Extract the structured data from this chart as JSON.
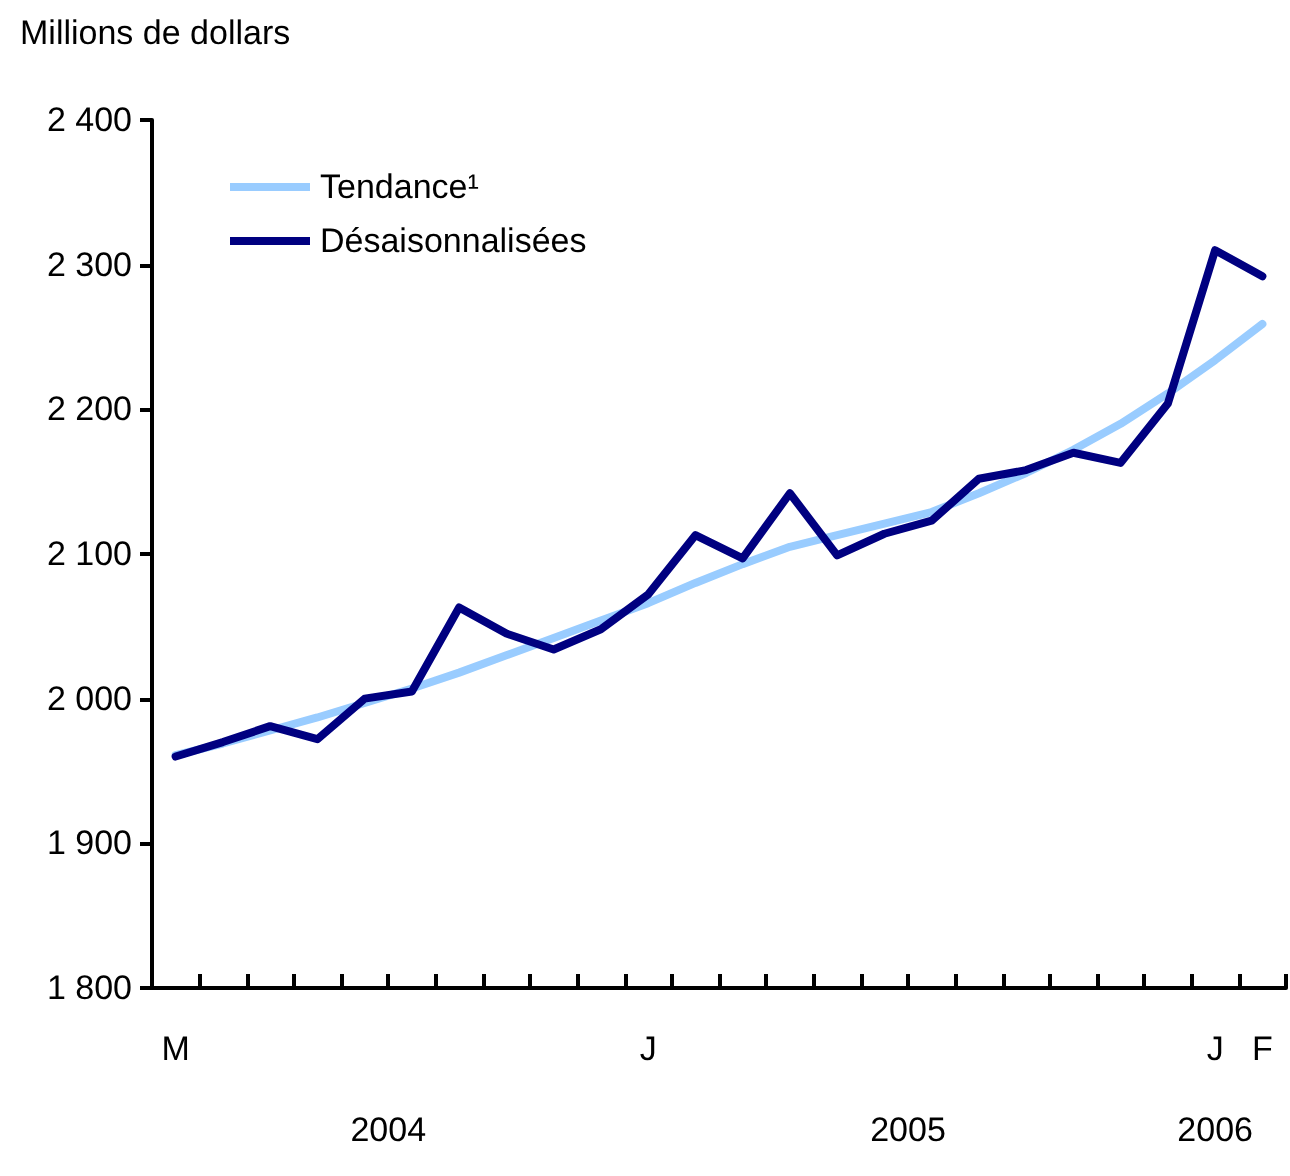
{
  "chart_data": {
    "type": "line",
    "ylabel": "Millions de dollars",
    "categories": [
      "M",
      null,
      null,
      null,
      null,
      null,
      null,
      null,
      null,
      null,
      "J",
      null,
      null,
      null,
      null,
      null,
      null,
      null,
      null,
      null,
      null,
      null,
      "J",
      "F"
    ],
    "series": [
      {
        "name": "Tendance¹",
        "color": "#99ccff",
        "values": [
          1961,
          1969,
          1978,
          1987,
          1997,
          2007,
          2018,
          2030,
          2042,
          2054,
          2066,
          2080,
          2093,
          2105,
          2113,
          2121,
          2129,
          2142,
          2156,
          2172,
          2190,
          2211,
          2234,
          2259
        ]
      },
      {
        "name": "Désaisonnalisées",
        "color": "#000080",
        "values": [
          1960,
          1970,
          1981,
          1972,
          2000,
          2005,
          2063,
          2045,
          2034,
          2048,
          2072,
          2113,
          2097,
          2142,
          2099,
          2114,
          2123,
          2152,
          2158,
          2170,
          2163,
          2204,
          2310,
          2292
        ]
      }
    ],
    "ylim": [
      1800,
      2400
    ],
    "yticks": [
      {
        "value": 1800,
        "label": "1 800"
      },
      {
        "value": 1900,
        "label": "1 900"
      },
      {
        "value": 2000,
        "label": "2 000"
      },
      {
        "value": 2100,
        "label": "2 100"
      },
      {
        "value": 2200,
        "label": "2 200"
      },
      {
        "value": 2300,
        "label": "2 300"
      },
      {
        "value": 2400,
        "label": "2 400"
      }
    ],
    "annotations": [
      "2004",
      "2005",
      "2006"
    ],
    "grid": false,
    "legend": "top left",
    "marker": "none",
    "line_style": "solid"
  }
}
